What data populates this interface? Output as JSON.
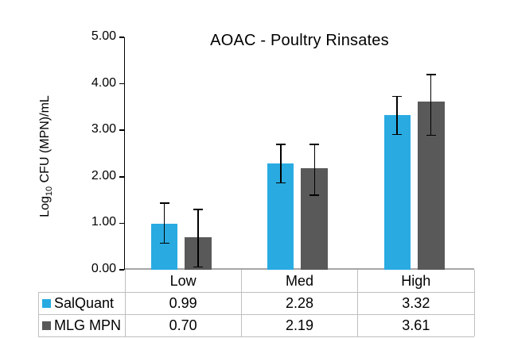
{
  "title": "AOAC - Poultry Rinsates",
  "y_axis": {
    "label_prefix": "Log",
    "label_sub": "10",
    "label_suffix": " CFU (MPN)/mL",
    "ticks": [
      "5.00",
      "4.00",
      "3.00",
      "2.00",
      "1.00",
      "0.00"
    ]
  },
  "chart_data": {
    "type": "bar",
    "title": "AOAC - Poultry Rinsates",
    "categories": [
      "Low",
      "Med",
      "High"
    ],
    "series": [
      {
        "name": "SalQuant",
        "color": "#29ABE2",
        "values": [
          0.99,
          2.28,
          3.32
        ],
        "error_high": [
          1.43,
          2.7,
          3.73
        ],
        "error_low": [
          0.57,
          1.87,
          2.91
        ]
      },
      {
        "name": "MLG MPN",
        "color": "#595959",
        "values": [
          0.7,
          2.19,
          3.61
        ],
        "error_high": [
          1.3,
          2.7,
          4.2
        ],
        "error_low": [
          0.06,
          1.6,
          2.89
        ]
      }
    ],
    "xlabel": "",
    "ylabel": "Log10 CFU (MPN)/mL",
    "ylim": [
      0,
      5
    ],
    "ytick_step": 1,
    "grid": false,
    "error_bars": true,
    "legend_position": "table-left"
  },
  "table": {
    "columns": [
      "Low",
      "Med",
      "High"
    ],
    "rows": [
      {
        "label": "SalQuant",
        "values": [
          "0.99",
          "2.28",
          "3.32"
        ]
      },
      {
        "label": "MLG MPN",
        "values": [
          "0.70",
          "2.19",
          "3.61"
        ]
      }
    ]
  },
  "colors": {
    "salquant_blue": "#29ABE2",
    "mlg_gray": "#595959",
    "axis_y_line": "#000000",
    "axis_x_line": "#A6A6A6",
    "table_border": "#BFBFBF",
    "error_bar": "#000000",
    "text": "#000000"
  }
}
